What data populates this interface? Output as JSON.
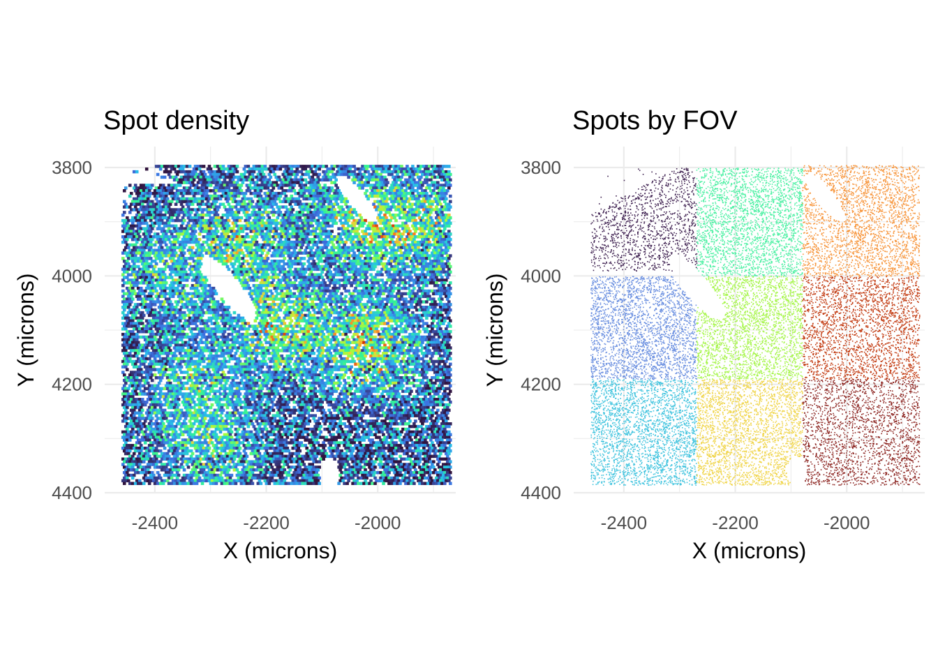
{
  "chart_data": [
    {
      "type": "heatmap",
      "title": "Spot density",
      "xlabel": "X (microns)",
      "ylabel": "Y (microns)",
      "xlim": [
        -2490,
        -1860
      ],
      "ylim": [
        4400,
        3800
      ],
      "y_reversed": true,
      "x_ticks": [
        -2400,
        -2200,
        -2000
      ],
      "x_tick_labels": [
        "-2400",
        "-2200",
        "-2000"
      ],
      "y_ticks": [
        3800,
        4000,
        4200,
        4400
      ],
      "y_tick_labels": [
        "3800",
        "4000",
        "4200",
        "4400"
      ],
      "grid": true,
      "legend": "none",
      "data_extent": {
        "x": [
          -2460,
          -1870
        ],
        "y": [
          3795,
          4385
        ]
      },
      "colormap": [
        "#30123b",
        "#3e6fe0",
        "#28bceb",
        "#32f298",
        "#a4fc3c",
        "#eecf3a",
        "#fb7e21",
        "#d23105"
      ],
      "holes": [
        {
          "x": -2270,
          "y": 4020,
          "rx": 22,
          "ry": 75,
          "rotation_deg": -38
        },
        {
          "x": -2040,
          "y": 3855,
          "rx": 16,
          "ry": 55,
          "rotation_deg": -38
        },
        {
          "x": -2090,
          "y": 4360,
          "rx": 18,
          "ry": 28,
          "rotation_deg": 0
        }
      ],
      "hotspots": [
        {
          "x": -2250,
          "y": 3930,
          "weight": 0.6
        },
        {
          "x": -2180,
          "y": 4090,
          "weight": 0.7
        },
        {
          "x": -2020,
          "y": 4130,
          "weight": 0.75
        },
        {
          "x": -2030,
          "y": 3900,
          "weight": 0.6
        },
        {
          "x": -1930,
          "y": 3910,
          "weight": 0.55
        },
        {
          "x": -2330,
          "y": 4200,
          "weight": 0.4
        },
        {
          "x": -2380,
          "y": 3990,
          "weight": 0.35
        },
        {
          "x": -2300,
          "y": 4320,
          "weight": 0.35
        }
      ]
    },
    {
      "type": "scatter",
      "title": "Spots by FOV",
      "xlabel": "X (microns)",
      "ylabel": "Y (microns)",
      "xlim": [
        -2490,
        -1860
      ],
      "ylim": [
        4400,
        3800
      ],
      "y_reversed": true,
      "x_ticks": [
        -2400,
        -2200,
        -2000
      ],
      "x_tick_labels": [
        "-2400",
        "-2200",
        "-2000"
      ],
      "y_ticks": [
        3800,
        4000,
        4200,
        4400
      ],
      "y_tick_labels": [
        "3800",
        "4000",
        "4200",
        "4400"
      ],
      "grid": true,
      "legend": "none",
      "fovs": [
        {
          "x": [
            -2460,
            -2270
          ],
          "y": [
            3800,
            3990
          ],
          "color": "#3d1f4f",
          "density": 0.6
        },
        {
          "x": [
            -2270,
            -2080
          ],
          "y": [
            3800,
            4000
          ],
          "color": "#4cf0a3",
          "density": 1.0
        },
        {
          "x": [
            -2080,
            -1870
          ],
          "y": [
            3795,
            4000
          ],
          "color": "#f7953b",
          "density": 1.0
        },
        {
          "x": [
            -2460,
            -2270
          ],
          "y": [
            4000,
            4190
          ],
          "color": "#6a8fe0",
          "density": 1.0
        },
        {
          "x": [
            -2270,
            -2080
          ],
          "y": [
            4000,
            4190
          ],
          "color": "#a6f54a",
          "density": 1.0
        },
        {
          "x": [
            -2080,
            -1870
          ],
          "y": [
            4000,
            4190
          ],
          "color": "#c23a10",
          "density": 0.9
        },
        {
          "x": [
            -2460,
            -2270
          ],
          "y": [
            4190,
            4385
          ],
          "color": "#3ec3de",
          "density": 1.0
        },
        {
          "x": [
            -2270,
            -2080
          ],
          "y": [
            4190,
            4385
          ],
          "color": "#f0d54a",
          "density": 1.0
        },
        {
          "x": [
            -2080,
            -1870
          ],
          "y": [
            4190,
            4385
          ],
          "color": "#8c2420",
          "density": 0.8
        }
      ]
    }
  ]
}
